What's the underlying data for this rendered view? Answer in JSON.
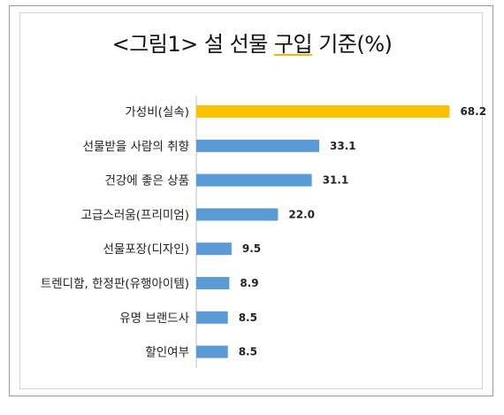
{
  "chart_data": {
    "type": "bar",
    "orientation": "horizontal",
    "title_parts": [
      "<그림1> 설 선물 ",
      "구입",
      " 기준(%)"
    ],
    "categories": [
      "가성비(실속)",
      "선물받을 사람의 취향",
      "건강에 좋은 상품",
      "고급스러움(프리미엄)",
      "선물포장(디자인)",
      "트렌디함, 한정판(유행아이템)",
      "유명 브랜드사",
      "할인여부"
    ],
    "values": [
      68.2,
      33.1,
      31.1,
      22.0,
      9.5,
      8.9,
      8.5,
      8.5
    ],
    "value_labels": [
      "68.2",
      "33.1",
      "31.1",
      "22.0",
      "9.5",
      "8.9",
      "8.5",
      "8.5"
    ],
    "colors": [
      "#FFC000",
      "#5B9BD5",
      "#5B9BD5",
      "#5B9BD5",
      "#5B9BD5",
      "#5B9BD5",
      "#5B9BD5",
      "#5B9BD5"
    ],
    "xlim": [
      0,
      70
    ],
    "grid": false,
    "legend": "none"
  }
}
